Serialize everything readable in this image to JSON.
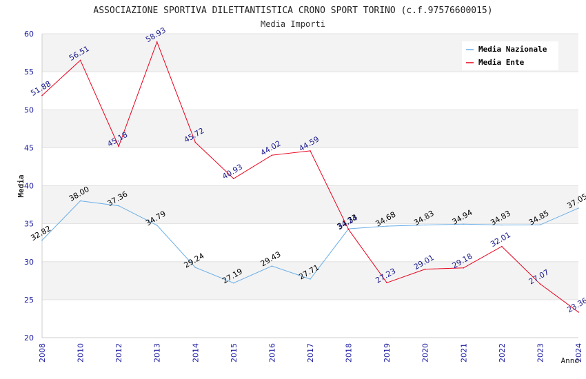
{
  "chart_data": {
    "type": "line",
    "title": "ASSOCIAZIONE SPORTIVA DILETTANTISTICA CRONO SPORT TORINO (c.f.97576600015)",
    "subtitle": "Media Importi",
    "xlabel": "Anno",
    "ylabel": "Media",
    "ylim": [
      20,
      60
    ],
    "yticks": [
      "20",
      "25",
      "30",
      "35",
      "40",
      "45",
      "50",
      "55",
      "60"
    ],
    "categories": [
      "2008",
      "2010",
      "2012",
      "2013",
      "2014",
      "2015",
      "2016",
      "2017",
      "2018",
      "2019",
      "2020",
      "2021",
      "2022",
      "2023",
      "2024"
    ],
    "legend_position": "top-right",
    "series": [
      {
        "name": "Media Nazionale",
        "color": "#6aaee8",
        "label_color": "#000000",
        "values": [
          32.82,
          38.0,
          37.36,
          34.79,
          29.24,
          27.19,
          29.43,
          27.71,
          34.33,
          34.68,
          34.83,
          34.94,
          34.83,
          34.85,
          37.05
        ],
        "labels": [
          "32.82",
          "38.00",
          "37.36",
          "34.79",
          "29.24",
          "27.19",
          "29.43",
          "27.71",
          "34.33",
          "34.68",
          "34.83",
          "34.94",
          "34.83",
          "34.85",
          "37.05"
        ]
      },
      {
        "name": "Media Ente",
        "color": "#e8001c",
        "label_color": "#1a1a8c",
        "values": [
          51.88,
          56.51,
          45.18,
          58.93,
          45.72,
          40.93,
          44.02,
          44.59,
          34.24,
          27.23,
          29.01,
          29.18,
          32.01,
          27.07,
          23.36
        ],
        "labels": [
          "51.88",
          "56.51",
          "45.18",
          "58.93",
          "45.72",
          "40.93",
          "44.02",
          "44.59",
          "34.24",
          "27.23",
          "29.01",
          "29.18",
          "32.01",
          "27.07",
          "23.36"
        ]
      }
    ]
  }
}
